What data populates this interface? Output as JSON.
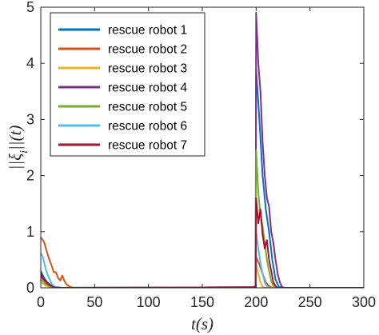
{
  "chart_data": {
    "type": "line",
    "xlabel": "t(s)",
    "ylabel": "||ξ_i||(t)",
    "xlim": [
      0,
      300
    ],
    "ylim": [
      0,
      5
    ],
    "x_ticks": [
      "0",
      "50",
      "100",
      "150",
      "200",
      "250",
      "300"
    ],
    "y_ticks": [
      "0",
      "1",
      "2",
      "3",
      "4",
      "5"
    ],
    "grid": false,
    "legend_position": "top-left",
    "series": [
      {
        "name": "rescue robot 1",
        "color": "#0072BD",
        "points": [
          [
            0,
            0.3
          ],
          [
            3,
            0.18
          ],
          [
            6,
            0.1
          ],
          [
            10,
            0.04
          ],
          [
            15,
            0.01
          ],
          [
            20,
            0
          ],
          [
            196,
            0.01
          ],
          [
            199,
            0.02
          ],
          [
            199.5,
            0
          ],
          [
            200,
            3.9
          ],
          [
            203,
            3.0
          ],
          [
            206,
            2.0
          ],
          [
            209,
            1.4
          ],
          [
            212,
            1.0
          ],
          [
            215,
            0.5
          ],
          [
            218,
            0.15
          ],
          [
            221,
            0.02
          ],
          [
            224,
            0
          ],
          [
            300,
            0
          ]
        ]
      },
      {
        "name": "rescue robot 2",
        "color": "#D95319",
        "points": [
          [
            0,
            0.9
          ],
          [
            3,
            0.82
          ],
          [
            6,
            0.62
          ],
          [
            8,
            0.5
          ],
          [
            10,
            0.4
          ],
          [
            12,
            0.28
          ],
          [
            14,
            0.28
          ],
          [
            16,
            0.18
          ],
          [
            18,
            0.13
          ],
          [
            20,
            0.22
          ],
          [
            22,
            0.12
          ],
          [
            24,
            0.06
          ],
          [
            27,
            0.02
          ],
          [
            30,
            0
          ],
          [
            196,
            0.01
          ],
          [
            199,
            0.02
          ],
          [
            199.5,
            0
          ],
          [
            200,
            0.55
          ],
          [
            203,
            0.42
          ],
          [
            206,
            0.25
          ],
          [
            209,
            0.1
          ],
          [
            212,
            0.03
          ],
          [
            215,
            0
          ],
          [
            300,
            0
          ]
        ]
      },
      {
        "name": "rescue robot 3",
        "color": "#EDB120",
        "points": [
          [
            0,
            0.1
          ],
          [
            4,
            0.05
          ],
          [
            8,
            0.01
          ],
          [
            10,
            0
          ],
          [
            196,
            0.01
          ],
          [
            199,
            0.02
          ],
          [
            199.5,
            0
          ],
          [
            200,
            0.42
          ],
          [
            202,
            0.25
          ],
          [
            204,
            0.1
          ],
          [
            206,
            0.02
          ],
          [
            208,
            0
          ],
          [
            300,
            0
          ]
        ]
      },
      {
        "name": "rescue robot 4",
        "color": "#7E2F8E",
        "points": [
          [
            0,
            0.2
          ],
          [
            3,
            0.14
          ],
          [
            6,
            0.08
          ],
          [
            10,
            0.03
          ],
          [
            14,
            0.01
          ],
          [
            18,
            0
          ],
          [
            196,
            0.01
          ],
          [
            199,
            0.02
          ],
          [
            199.5,
            0
          ],
          [
            200,
            4.9
          ],
          [
            202,
            4.0
          ],
          [
            204,
            3.5
          ],
          [
            206,
            2.6
          ],
          [
            208,
            2.0
          ],
          [
            210,
            1.6
          ],
          [
            212,
            1.45
          ],
          [
            214,
            1.0
          ],
          [
            216,
            0.8
          ],
          [
            218,
            0.5
          ],
          [
            220,
            0.25
          ],
          [
            222,
            0.1
          ],
          [
            224,
            0.02
          ],
          [
            226,
            0
          ],
          [
            300,
            0
          ]
        ]
      },
      {
        "name": "rescue robot 5",
        "color": "#77AC30",
        "points": [
          [
            0,
            0.15
          ],
          [
            4,
            0.08
          ],
          [
            8,
            0.03
          ],
          [
            12,
            0
          ],
          [
            196,
            0.01
          ],
          [
            199,
            0.02
          ],
          [
            199.5,
            0
          ],
          [
            200,
            2.45
          ],
          [
            202,
            1.7
          ],
          [
            204,
            1.3
          ],
          [
            206,
            1.1
          ],
          [
            208,
            0.8
          ],
          [
            210,
            0.5
          ],
          [
            212,
            0.3
          ],
          [
            214,
            0.12
          ],
          [
            216,
            0.03
          ],
          [
            218,
            0
          ],
          [
            300,
            0
          ]
        ]
      },
      {
        "name": "rescue robot 6",
        "color": "#4DBEEE",
        "points": [
          [
            0,
            0.62
          ],
          [
            2,
            0.55
          ],
          [
            4,
            0.38
          ],
          [
            6,
            0.25
          ],
          [
            8,
            0.16
          ],
          [
            10,
            0.08
          ],
          [
            12,
            0.03
          ],
          [
            15,
            0
          ],
          [
            196,
            0.01
          ],
          [
            199,
            0.02
          ],
          [
            199.5,
            0
          ],
          [
            200,
            1.0
          ],
          [
            202,
            0.7
          ],
          [
            204,
            0.45
          ],
          [
            206,
            0.25
          ],
          [
            208,
            0.1
          ],
          [
            210,
            0.03
          ],
          [
            212,
            0
          ],
          [
            300,
            0
          ]
        ]
      },
      {
        "name": "rescue robot 7",
        "color": "#A2142F",
        "points": [
          [
            0,
            0.25
          ],
          [
            3,
            0.16
          ],
          [
            6,
            0.08
          ],
          [
            10,
            0.03
          ],
          [
            14,
            0
          ],
          [
            196,
            0.01
          ],
          [
            199,
            0.02
          ],
          [
            199.5,
            0
          ],
          [
            200,
            1.6
          ],
          [
            202,
            1.15
          ],
          [
            204,
            1.4
          ],
          [
            206,
            0.95
          ],
          [
            208,
            0.7
          ],
          [
            210,
            0.85
          ],
          [
            212,
            0.5
          ],
          [
            214,
            0.3
          ],
          [
            216,
            0.1
          ],
          [
            218,
            0.03
          ],
          [
            220,
            0
          ],
          [
            300,
            0
          ]
        ]
      }
    ]
  }
}
